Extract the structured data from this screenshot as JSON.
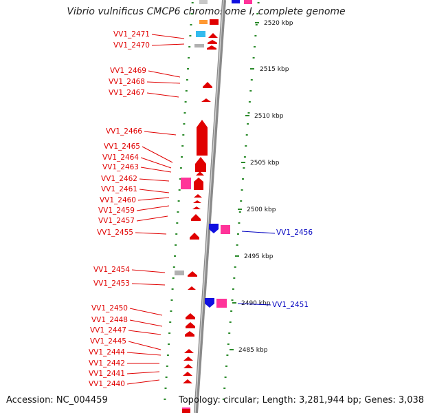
{
  "title": "Vibrio vulnificus CMCP6 chromosome I, complete genome",
  "accession": "Accession: NC_004459",
  "summary": "Topology: circular; Length: 3,281,944 bp; Genes: 3,038",
  "kbp_labels": [
    {
      "id": "kbp-2520",
      "text": "2520 kbp"
    },
    {
      "id": "kbp-2515",
      "text": "2515 kbp"
    },
    {
      "id": "kbp-2510",
      "text": "2510 kbp"
    },
    {
      "id": "kbp-2505",
      "text": "2505 kbp"
    },
    {
      "id": "kbp-2500",
      "text": "2500 kbp"
    },
    {
      "id": "kbp-2495",
      "text": "2495 kbp"
    },
    {
      "id": "kbp-2490",
      "text": "2490 kbp"
    },
    {
      "id": "kbp-2485",
      "text": "2485 kbp"
    }
  ],
  "genes_left": [
    "VV1_2471",
    "VV1_2470",
    "VV1_2469",
    "VV1_2468",
    "VV1_2467",
    "VV1_2466",
    "VV1_2465",
    "VV1_2464",
    "VV1_2463",
    "VV1_2462",
    "VV1_2461",
    "VV1_2460",
    "VV1_2459",
    "VV1_2457",
    "VV1_2455",
    "VV1_2454",
    "VV1_2453",
    "VV1_2450",
    "VV1_2448",
    "VV1_2447",
    "VV1_2445",
    "VV1_2444",
    "VV1_2442",
    "VV1_2441",
    "VV1_2440"
  ],
  "genes_right": [
    "VV1_2456",
    "VV1_2451"
  ],
  "colors": {
    "forward_gene": "#e00000",
    "reverse_gene": "#1010e0",
    "pink_feature": "#ff3399",
    "cyan_feature": "#33bbee",
    "orange_feature": "#ff9933",
    "grey_feature": "#b0b0b0",
    "backbone": "#8a8a8a",
    "tick": "#2a8a2a"
  }
}
